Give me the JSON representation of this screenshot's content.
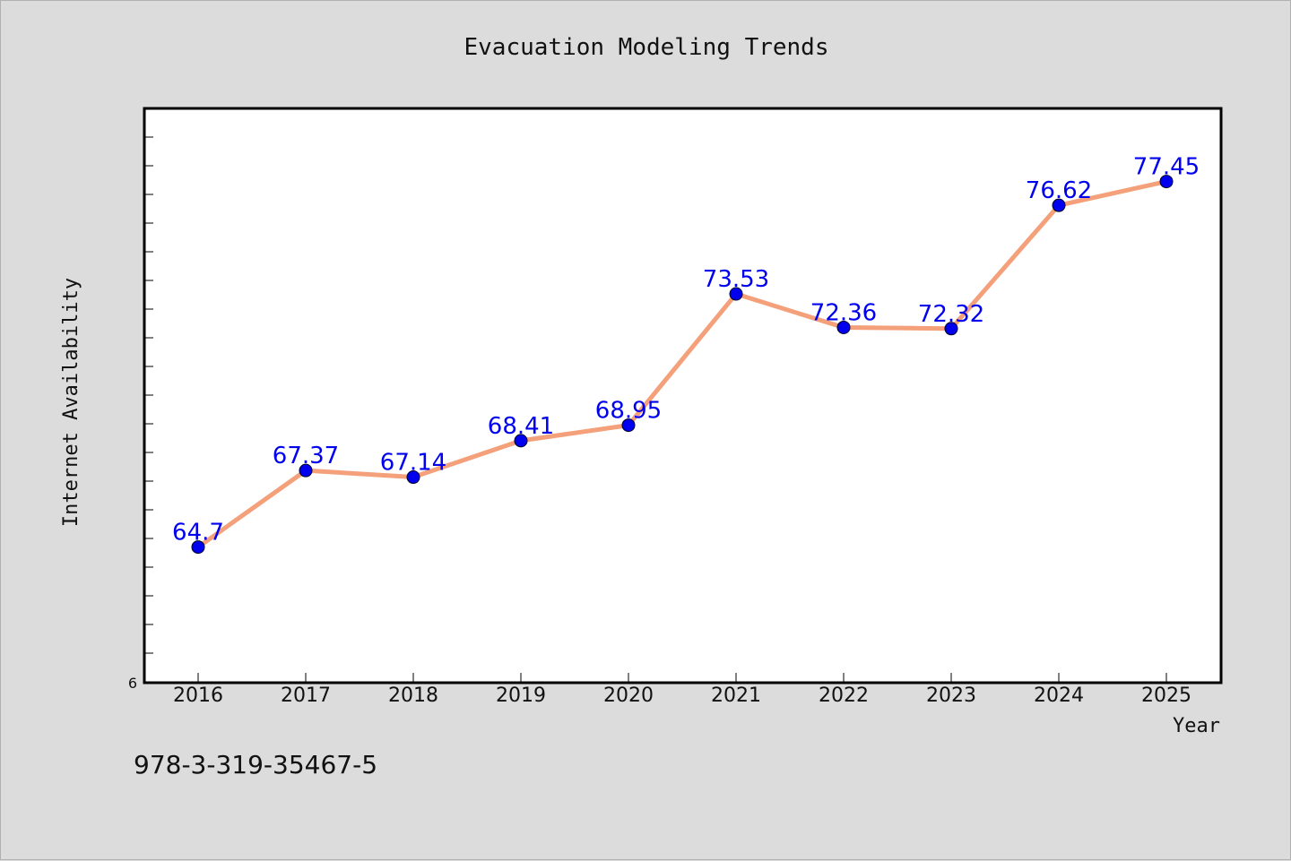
{
  "chart_data": {
    "type": "line",
    "title": "Evacuation Modeling Trends",
    "xlabel": "Year",
    "ylabel": "Internet Availability",
    "categories": [
      "2016",
      "2017",
      "2018",
      "2019",
      "2020",
      "2021",
      "2022",
      "2023",
      "2024",
      "2025"
    ],
    "series": [
      {
        "values": [
          64.7,
          67.37,
          67.14,
          68.41,
          68.95,
          73.53,
          72.36,
          72.32,
          76.62,
          77.45
        ],
        "labels": [
          "64.7",
          "67.37",
          "67.14",
          "68.41",
          "68.95",
          "73.53",
          "72.36",
          "72.32",
          "76.62",
          "77.45"
        ],
        "line_color": "#f4a07a",
        "marker_color": "#0000ee",
        "label_color": "#0000ee"
      }
    ],
    "y_tick_label": "6",
    "ylim": [
      60,
      80
    ],
    "grid": false,
    "legend": "none"
  },
  "footer_text": "978-3-319-35467-5",
  "colors": {
    "background": "#dcdcdc",
    "plot_background": "#ffffff",
    "axis": "#000000"
  }
}
